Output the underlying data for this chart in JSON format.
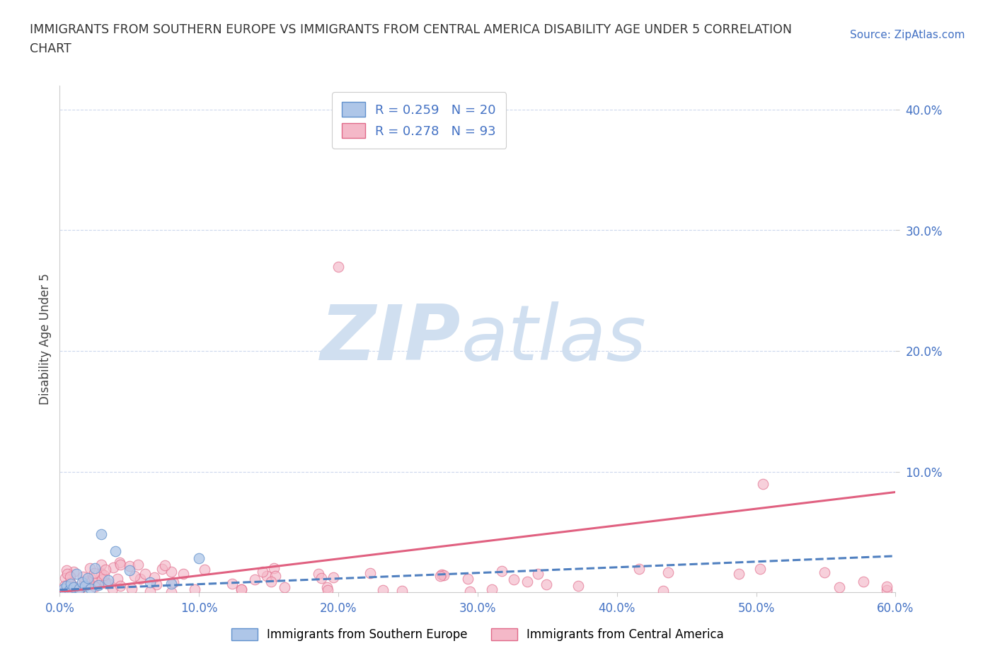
{
  "title_line1": "IMMIGRANTS FROM SOUTHERN EUROPE VS IMMIGRANTS FROM CENTRAL AMERICA DISABILITY AGE UNDER 5 CORRELATION",
  "title_line2": "CHART",
  "source_text": "Source: ZipAtlas.com",
  "ylabel": "Disability Age Under 5",
  "xlim": [
    0.0,
    0.6
  ],
  "ylim": [
    0.0,
    0.42
  ],
  "xticks": [
    0.0,
    0.1,
    0.2,
    0.3,
    0.4,
    0.5,
    0.6
  ],
  "xticklabels": [
    "0.0%",
    "10.0%",
    "20.0%",
    "30.0%",
    "40.0%",
    "50.0%",
    "60.0%"
  ],
  "yticks": [
    0.1,
    0.2,
    0.3,
    0.4
  ],
  "yticklabels": [
    "10.0%",
    "20.0%",
    "30.0%",
    "40.0%"
  ],
  "watermark_zip": "ZIP",
  "watermark_atlas": "atlas",
  "watermark_color": "#d0dff0",
  "background_color": "#ffffff",
  "grid_color": "#c0cfe8",
  "tick_color": "#4472c4",
  "series": [
    {
      "label": "Immigrants from Southern Europe",
      "R": 0.259,
      "N": 20,
      "color_fill": "#aec6e8",
      "color_edge": "#6090cc",
      "line_color": "#5080c0",
      "line_style": "--",
      "line_start_y": 0.002,
      "line_end_y": 0.03
    },
    {
      "label": "Immigrants from Central America",
      "R": 0.278,
      "N": 93,
      "color_fill": "#f4b8c8",
      "color_edge": "#e06888",
      "line_color": "#e06080",
      "line_style": "-",
      "line_start_y": 0.0,
      "line_end_y": 0.083
    }
  ]
}
